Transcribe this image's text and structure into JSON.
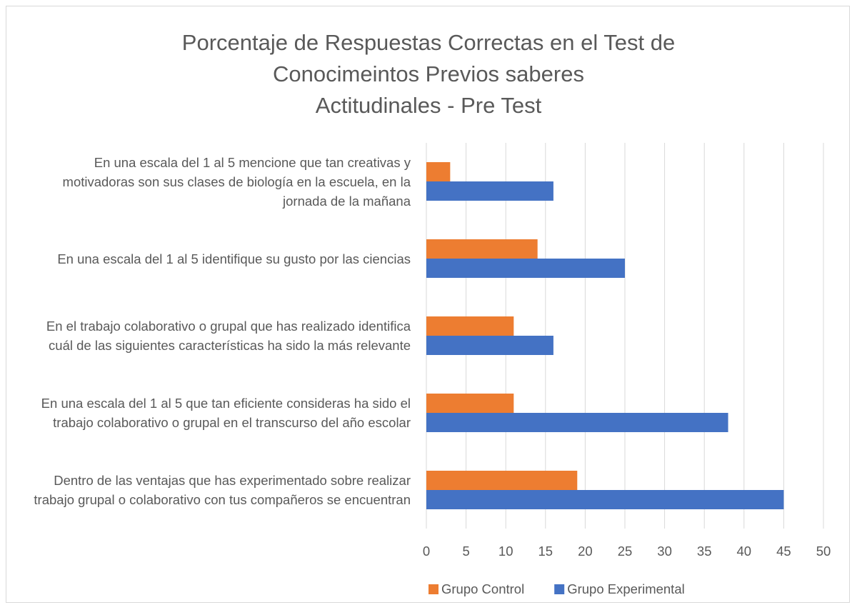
{
  "chart_data": {
    "type": "bar",
    "orientation": "horizontal",
    "title": "Porcentaje de Respuestas Correctas en el Test de\nConocimeintos Previos saberes\nActitudinales - Pre Test",
    "categories": [
      "En una escala del 1 al 5 mencione que tan creativas y motivadoras son sus clases de biología en la escuela, en la jornada de la mañana",
      "En una escala del 1 al 5 identifique su gusto por las ciencias",
      "En el trabajo colaborativo o grupal que has realizado identifica cuál de las siguientes características ha sido la más relevante",
      "En una escala del 1 al 5 que tan eficiente consideras ha sido el trabajo colaborativo o grupal en el transcurso del año escolar",
      "Dentro de las ventajas que has experimentado sobre realizar trabajo grupal o colaborativo con tus compañeros se encuentran"
    ],
    "series": [
      {
        "name": "Grupo Control",
        "color": "#ed7d31",
        "values": [
          3,
          14,
          11,
          11,
          19
        ]
      },
      {
        "name": "Grupo Experimental",
        "color": "#4472c4",
        "values": [
          16,
          25,
          16,
          38,
          45
        ]
      }
    ],
    "xlim": [
      0,
      50
    ],
    "xticks": [
      0,
      5,
      10,
      15,
      20,
      25,
      30,
      35,
      40,
      45,
      50
    ],
    "grid": true,
    "legend": "bottom"
  }
}
